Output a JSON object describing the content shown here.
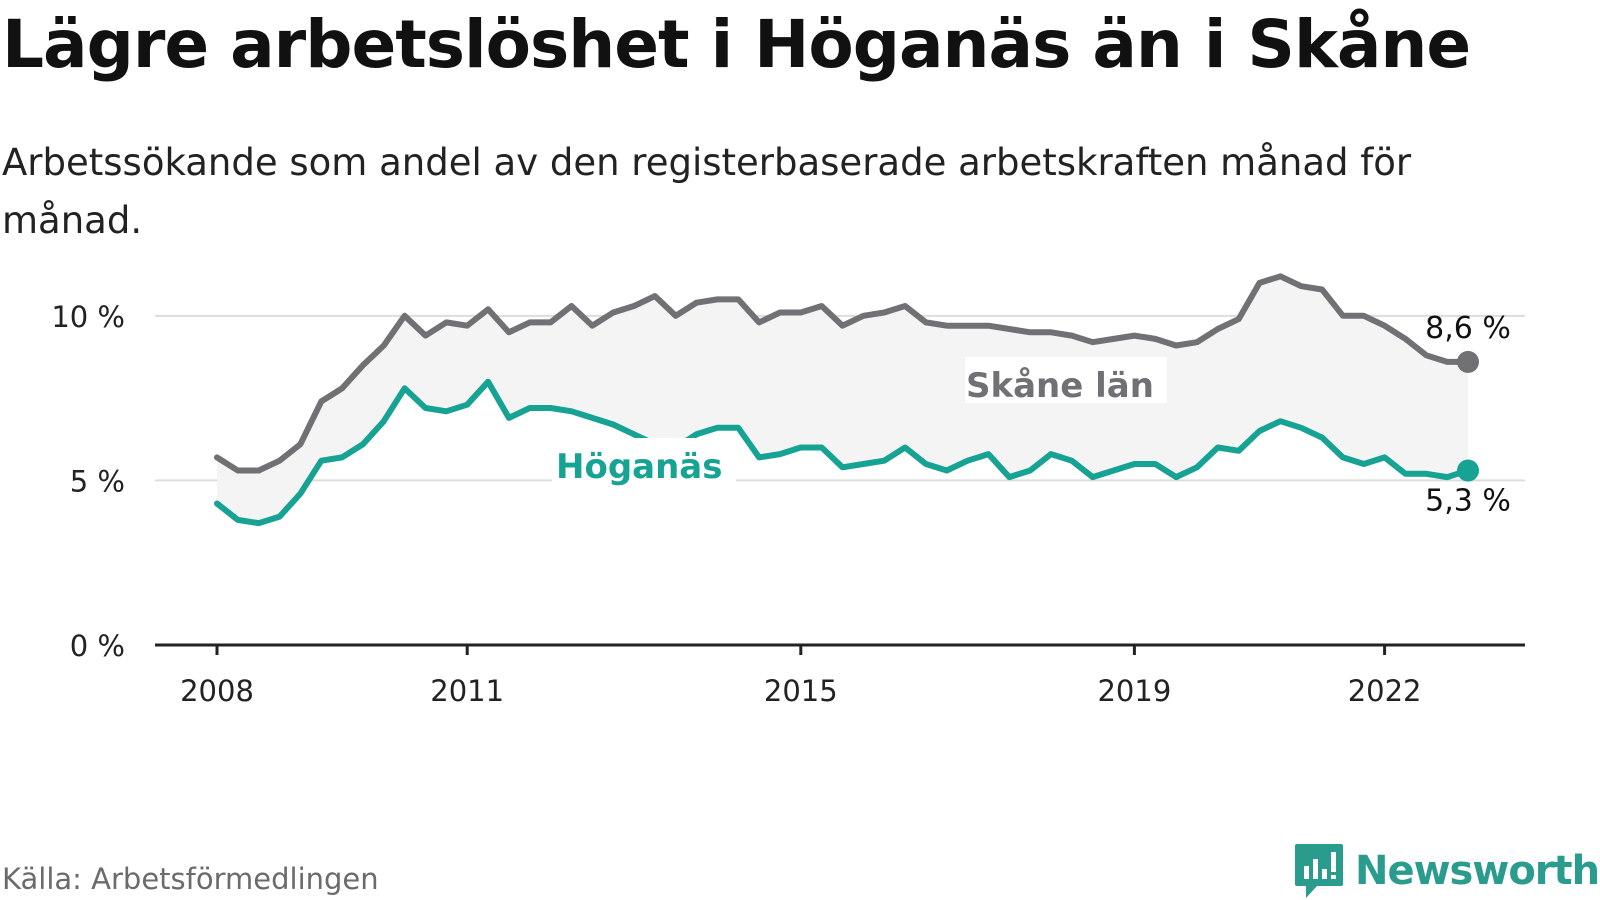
{
  "title": "Lägre arbetslöshet i Höganäs än i Skåne",
  "subtitle": "Arbetssökande som andel av den registerbaserade arbetskraften månad för månad.",
  "source": "Källa: Arbetsförmedlingen",
  "brand": {
    "name": "Newsworthy",
    "icon": "newsworthy-logo-icon"
  },
  "colors": {
    "skane": "#717175",
    "hoganas": "#16a394",
    "band": "#f4f4f4",
    "grid": "#dddddd",
    "axis": "#222222"
  },
  "chart_data": {
    "type": "line",
    "title": "Lägre arbetslöshet i Höganäs än i Skåne",
    "xlabel": "",
    "ylabel": "",
    "xlim": [
      2007.9,
      2024.4
    ],
    "ylim": [
      0,
      12
    ],
    "yticks": [
      0,
      5,
      10
    ],
    "ytick_labels": [
      "0 %",
      "5 %",
      "10 %"
    ],
    "xticks": [
      2008,
      2011,
      2015,
      2019,
      2022
    ],
    "xtick_labels": [
      "2008",
      "2011",
      "2015",
      "2019",
      "2022"
    ],
    "grid": true,
    "x": [
      2008.0,
      2008.25,
      2008.5,
      2008.75,
      2009.0,
      2009.25,
      2009.5,
      2009.75,
      2010.0,
      2010.25,
      2010.5,
      2010.75,
      2011.0,
      2011.25,
      2011.5,
      2011.75,
      2012.0,
      2012.25,
      2012.5,
      2012.75,
      2013.0,
      2013.25,
      2013.5,
      2013.75,
      2014.0,
      2014.25,
      2014.5,
      2014.75,
      2015.0,
      2015.25,
      2015.5,
      2015.75,
      2016.0,
      2016.25,
      2016.5,
      2016.75,
      2017.0,
      2017.25,
      2017.5,
      2017.75,
      2018.0,
      2018.25,
      2018.5,
      2018.75,
      2019.0,
      2019.25,
      2019.5,
      2019.75,
      2020.0,
      2020.25,
      2020.5,
      2020.75,
      2021.0,
      2021.25,
      2021.5,
      2021.75,
      2022.0,
      2022.25,
      2022.5,
      2022.75,
      2023.0
    ],
    "series": [
      {
        "name": "Skåne län",
        "values": [
          5.7,
          5.3,
          5.3,
          5.6,
          6.1,
          7.4,
          7.8,
          8.5,
          9.1,
          10.0,
          9.4,
          9.8,
          9.7,
          10.2,
          9.5,
          9.8,
          9.8,
          10.3,
          9.7,
          10.1,
          10.3,
          10.6,
          10.0,
          10.4,
          10.5,
          10.5,
          9.8,
          10.1,
          10.1,
          10.3,
          9.7,
          10.0,
          10.1,
          10.3,
          9.8,
          9.7,
          9.7,
          9.7,
          9.6,
          9.5,
          9.5,
          9.4,
          9.2,
          9.3,
          9.4,
          9.3,
          9.1,
          9.2,
          9.6,
          9.9,
          11.0,
          11.2,
          10.9,
          10.8,
          10.0,
          10.0,
          9.7,
          9.3,
          8.8,
          8.6,
          8.6
        ],
        "end_label": "8,6 %"
      },
      {
        "name": "Höganäs",
        "values": [
          4.3,
          3.8,
          3.7,
          3.9,
          4.6,
          5.6,
          5.7,
          6.1,
          6.8,
          7.8,
          7.2,
          7.1,
          7.3,
          8.0,
          6.9,
          7.2,
          7.2,
          7.1,
          6.9,
          6.7,
          6.4,
          6.1,
          6.0,
          6.4,
          6.6,
          6.6,
          5.7,
          5.8,
          6.0,
          6.0,
          5.4,
          5.5,
          5.6,
          6.0,
          5.5,
          5.3,
          5.6,
          5.8,
          5.1,
          5.3,
          5.8,
          5.6,
          5.1,
          5.3,
          5.5,
          5.5,
          5.1,
          5.4,
          6.0,
          5.9,
          6.5,
          6.8,
          6.6,
          6.3,
          5.7,
          5.5,
          5.7,
          5.2,
          5.2,
          5.1,
          5.3
        ],
        "end_label": "5,3 %"
      }
    ]
  }
}
